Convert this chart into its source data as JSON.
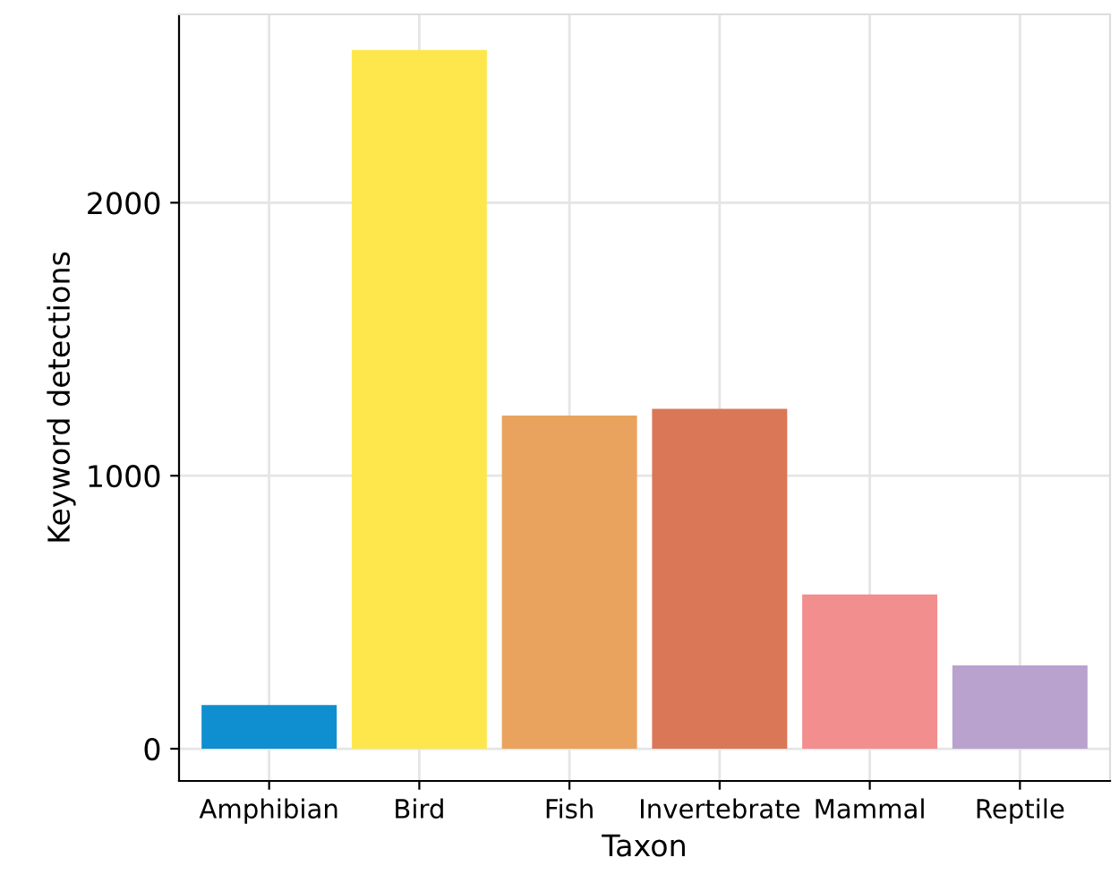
{
  "chart_data": {
    "type": "bar",
    "xlabel": "Taxon",
    "ylabel": "Keyword detections",
    "categories": [
      "Amphibian",
      "Bird",
      "Fish",
      "Invertebrate",
      "Mammal",
      "Reptile"
    ],
    "values": [
      160,
      2560,
      1220,
      1245,
      565,
      305
    ],
    "colors": [
      "#0f8fd0",
      "#fde74c",
      "#e9a35e",
      "#d97756",
      "#f28e8e",
      "#b9a2ce"
    ],
    "ylim": [
      -118,
      2690
    ],
    "yticks": [
      0,
      1000,
      2000
    ],
    "grid": true
  }
}
